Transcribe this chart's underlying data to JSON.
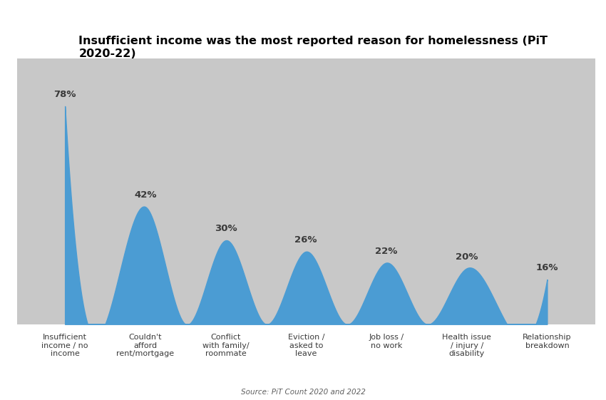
{
  "title": "Insufficient income was the most reported reason for homelessness (PiT 2020-22)",
  "categories": [
    "Insufficient\nincome / no\nincome",
    "Couldn't\nafford\nrent/mortgage",
    "Conflict\nwith family/\nroommate",
    "Eviction /\nasked to\nleave",
    "Job loss /\nno work",
    "Health issue\n/ injury /\ndisability",
    "Relationship\nbreakdown"
  ],
  "values": [
    78,
    42,
    30,
    26,
    22,
    20,
    16
  ],
  "fill_color": "#4B9CD3",
  "label_color": "#3a3a3a",
  "title_color": "#000000",
  "bg_color": "#FFFFFF",
  "plot_bg_color": "#C8C8C8",
  "xaxis_bg_color": "#D8D8D8",
  "ylim_max": 95,
  "title_fontsize": 11.5,
  "value_label_fontsize": 9.5,
  "cat_label_fontsize": 8,
  "note": "Source: PiT Count 2020 and 2022"
}
